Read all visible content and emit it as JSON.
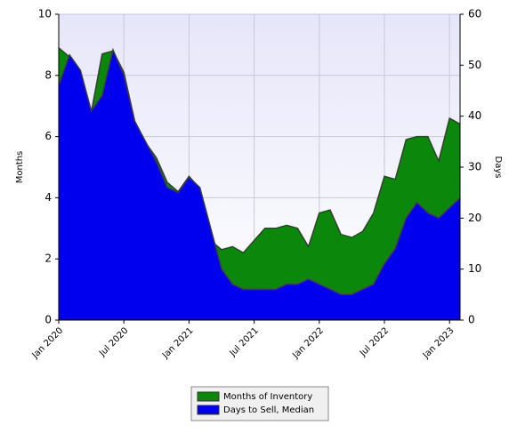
{
  "chart_data": {
    "type": "area",
    "ylabel": "Months",
    "y2label": "Days",
    "categories": [
      "Jan 2020",
      null,
      null,
      null,
      null,
      null,
      "Jul 2020",
      null,
      null,
      null,
      null,
      null,
      "Jan 2021",
      null,
      null,
      null,
      null,
      null,
      "Jul 2021",
      null,
      null,
      null,
      null,
      null,
      "Jan 2022",
      null,
      null,
      null,
      null,
      null,
      "Jul 2022",
      null,
      null,
      null,
      null,
      null,
      "Jan 2023",
      null
    ],
    "series": [
      {
        "name": "Months of Inventory",
        "color": "#0b870b",
        "values": [
          8.9,
          8.6,
          8.1,
          6.8,
          8.7,
          8.8,
          8.1,
          6.5,
          5.8,
          5.3,
          4.5,
          4.2,
          4.7,
          4.3,
          2.6,
          2.3,
          2.4,
          2.2,
          2.6,
          3.0,
          3.0,
          3.1,
          3.0,
          2.4,
          3.5,
          3.6,
          2.8,
          2.7,
          2.9,
          3.5,
          4.7,
          4.6,
          5.9,
          6.0,
          6.0,
          5.2,
          6.6,
          6.4
        ]
      },
      {
        "name": "Days to Sell, Median",
        "color": "#0000ee",
        "axis": "y2",
        "values": [
          46,
          52,
          49,
          41,
          44,
          53,
          48,
          39,
          35,
          31,
          26,
          25,
          28,
          26,
          18,
          10,
          7,
          6,
          6,
          6,
          6,
          7,
          7,
          8,
          7,
          6,
          5,
          5,
          6,
          7,
          11,
          14,
          20,
          23,
          21,
          20,
          22,
          24
        ]
      }
    ],
    "ylim": [
      0,
      10
    ],
    "yticks": [
      0,
      2,
      4,
      6,
      8,
      10
    ],
    "y2lim": [
      0,
      60
    ],
    "y2ticks": [
      0,
      10,
      20,
      30,
      40,
      50,
      60
    ],
    "grid": true
  }
}
